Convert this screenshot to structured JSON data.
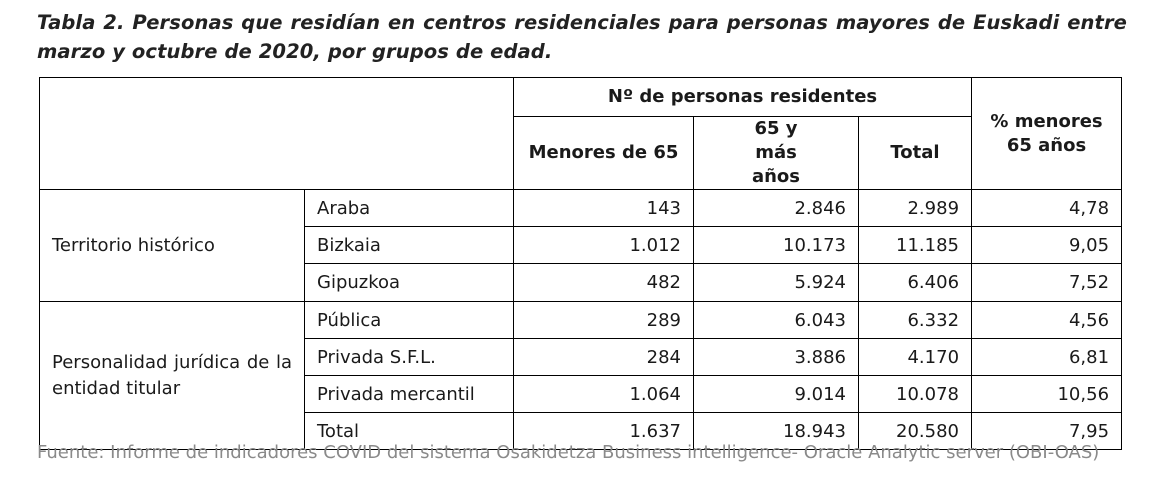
{
  "title": "Tabla 2. Personas que residían en centros residenciales para personas mayores de Euskadi entre marzo y octubre de 2020, por grupos de edad.",
  "table": {
    "header": {
      "group_label": "Nº de personas residentes",
      "pct_label": "% menores 65 años",
      "columns": [
        "Menores de 65",
        "65 y más años",
        "Total"
      ]
    },
    "groups": [
      {
        "label": "Territorio histórico",
        "rows": [
          {
            "label": "Araba",
            "values": [
              "143",
              "2.846",
              "2.989",
              "4,78"
            ]
          },
          {
            "label": "Bizkaia",
            "values": [
              "1.012",
              "10.173",
              "11.185",
              "9,05"
            ]
          },
          {
            "label": "Gipuzkoa",
            "values": [
              "482",
              "5.924",
              "6.406",
              "7,52"
            ]
          }
        ]
      },
      {
        "label": "Personalidad jurídica de la entidad titular",
        "rows": [
          {
            "label": "Pública",
            "values": [
              "289",
              "6.043",
              "6.332",
              "4,56"
            ]
          },
          {
            "label": "Privada S.F.L.",
            "values": [
              "284",
              "3.886",
              "4.170",
              "6,81"
            ]
          },
          {
            "label": "Privada mercantil",
            "values": [
              "1.064",
              "9.014",
              "10.078",
              "10,56"
            ]
          },
          {
            "label": "Total",
            "values": [
              "1.637",
              "18.943",
              "20.580",
              "7,95"
            ]
          }
        ]
      }
    ]
  },
  "source": "Fuente: Informe de indicadores COVID del sistema Osakidetza Business intelligence- Oracle Analytic server (OBI-OAS)"
}
